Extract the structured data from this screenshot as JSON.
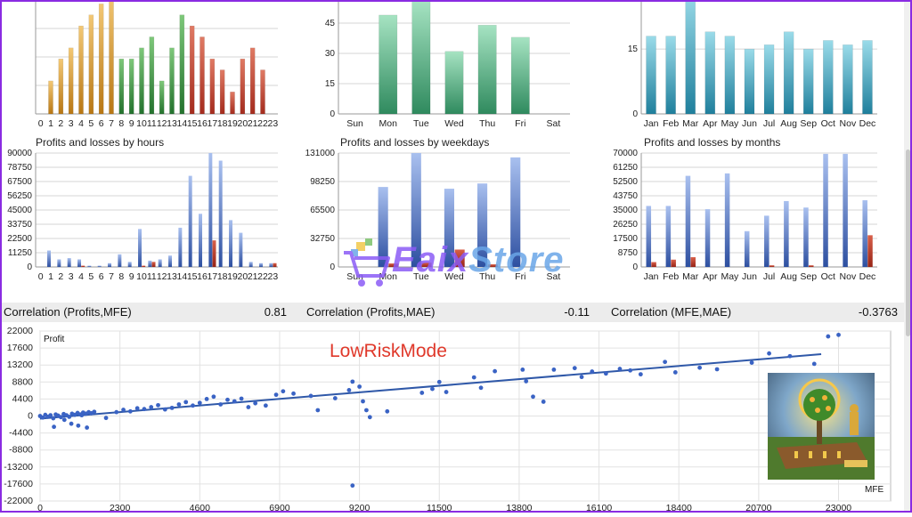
{
  "colors": {
    "brown": "#c8861d",
    "green": "#2f8c3a",
    "red": "#b3392a",
    "teal": "#3fa67a",
    "cyan": "#2b98b6",
    "blue": "#3f61b3",
    "loss": "#b3392a",
    "grid": "#d6d6d6",
    "trend": "#2f58a8",
    "dot": "#3a63c4"
  },
  "correlations": [
    {
      "label": "Correlation (Profits,MFE)",
      "value": "0.81"
    },
    {
      "label": "Correlation (Profits,MAE)",
      "value": "-0.11"
    },
    {
      "label": "Correlation (MFE,MAE)",
      "value": "-0.3763"
    }
  ],
  "overlay": {
    "watermark_main": "Eaix",
    "watermark_store": "Store",
    "mode_label": "LowRiskMode"
  },
  "chart_data": [
    {
      "id": "top-hours",
      "type": "bar",
      "title": "",
      "categories": [
        "0",
        "1",
        "2",
        "3",
        "4",
        "5",
        "6",
        "7",
        "8",
        "9",
        "10",
        "11",
        "12",
        "13",
        "14",
        "15",
        "16",
        "17",
        "18",
        "19",
        "20",
        "21",
        "22",
        "23"
      ],
      "values": [
        0,
        3,
        5,
        6,
        8,
        9,
        10,
        11,
        5,
        5,
        6,
        7,
        3,
        6,
        9,
        8,
        7,
        5,
        4,
        2,
        5,
        6,
        4,
        0
      ],
      "bar_colors": [
        "brown",
        "brown",
        "brown",
        "brown",
        "brown",
        "brown",
        "brown",
        "brown",
        "green",
        "green",
        "green",
        "green",
        "green",
        "green",
        "green",
        "red",
        "red",
        "red",
        "red",
        "red",
        "red",
        "red",
        "red",
        "red"
      ],
      "ylim": [
        0,
        11
      ],
      "yticks": [],
      "yticks_note": "top of chart cropped; tick labels not visible"
    },
    {
      "id": "top-weekdays",
      "type": "bar",
      "categories": [
        "Sun",
        "Mon",
        "Tue",
        "Wed",
        "Thu",
        "Fri",
        "Sat"
      ],
      "values": [
        0,
        49,
        56,
        31,
        44,
        38,
        0
      ],
      "ylim": [
        0,
        60
      ],
      "yticks": [
        "0",
        "15",
        "30",
        "45"
      ]
    },
    {
      "id": "top-months",
      "type": "bar",
      "categories": [
        "Jan",
        "Feb",
        "Mar",
        "Apr",
        "May",
        "Jun",
        "Jul",
        "Aug",
        "Sep",
        "Oct",
        "Nov",
        "Dec"
      ],
      "values": [
        18,
        18,
        28,
        19,
        18,
        15,
        16,
        19,
        15,
        17,
        16,
        17
      ],
      "ylim": [
        0,
        28
      ],
      "yticks": [
        "0",
        "15"
      ]
    },
    {
      "id": "pl-hours",
      "type": "bar",
      "title": "Profits and losses by hours",
      "categories": [
        "0",
        "1",
        "2",
        "3",
        "4",
        "5",
        "6",
        "7",
        "8",
        "9",
        "10",
        "11",
        "12",
        "13",
        "14",
        "15",
        "16",
        "17",
        "18",
        "19",
        "20",
        "21",
        "22",
        "23"
      ],
      "series": [
        {
          "values": [
            0,
            13000,
            6000,
            7000,
            6000,
            1000,
            1000,
            3000,
            10000,
            4000,
            30000,
            5000,
            6000,
            9000,
            31000,
            72000,
            42000,
            90000,
            84000,
            37000,
            27000,
            4000,
            3000,
            3000
          ]
        },
        {
          "values": [
            0,
            0,
            0,
            0,
            1000,
            0,
            0,
            0,
            0,
            0,
            1000,
            4000,
            0,
            0,
            0,
            0,
            0,
            21000,
            0,
            0,
            0,
            0,
            0,
            3000
          ]
        }
      ],
      "ylim": [
        0,
        90000
      ],
      "yticks": [
        "0",
        "11250",
        "22500",
        "33750",
        "45000",
        "56250",
        "67500",
        "78750",
        "90000"
      ]
    },
    {
      "id": "pl-weekdays",
      "type": "bar",
      "title": "Profits and losses by weekdays",
      "categories": [
        "Sun",
        "Mon",
        "Tue",
        "Wed",
        "Thu",
        "Fri",
        "Sat"
      ],
      "series": [
        {
          "values": [
            0,
            92000,
            131000,
            90000,
            96000,
            126000,
            0
          ]
        },
        {
          "values": [
            0,
            4000,
            5000,
            20000,
            3000,
            0,
            0
          ]
        }
      ],
      "ylim": [
        0,
        131000
      ],
      "yticks": [
        "0",
        "32750",
        "65500",
        "98250",
        "131000"
      ]
    },
    {
      "id": "pl-months",
      "type": "bar",
      "title": "Profits and losses by months",
      "categories": [
        "Jan",
        "Feb",
        "Mar",
        "Apr",
        "May",
        "Jun",
        "Jul",
        "Aug",
        "Sep",
        "Oct",
        "Nov",
        "Dec"
      ],
      "series": [
        {
          "values": [
            37500,
            37500,
            56000,
            35500,
            57500,
            22000,
            31500,
            40500,
            36500,
            69500,
            69500,
            41000
          ]
        },
        {
          "values": [
            3000,
            4500,
            6000,
            0,
            0,
            0,
            1000,
            0,
            1000,
            0,
            0,
            19500
          ]
        }
      ],
      "ylim": [
        0,
        70000
      ],
      "yticks": [
        "0",
        "8750",
        "17500",
        "26250",
        "35000",
        "43750",
        "52500",
        "61250",
        "70000"
      ]
    },
    {
      "id": "scatter-mfe",
      "type": "scatter",
      "xlabel": "MFE",
      "ylabel": "Profit",
      "xlim": [
        0,
        24500
      ],
      "ylim": [
        -22000,
        22000
      ],
      "xticks": [
        "0",
        "2300",
        "4600",
        "6900",
        "9200",
        "11500",
        "13800",
        "16100",
        "18400",
        "20700",
        "23000"
      ],
      "yticks": [
        "-22000",
        "-17600",
        "-13200",
        "-8800",
        "-4400",
        "0",
        "4400",
        "8800",
        "13200",
        "17600",
        "22000"
      ],
      "trend": {
        "x": [
          0,
          22500
        ],
        "y": [
          -700,
          16000
        ]
      },
      "points": [
        [
          0,
          0
        ],
        [
          80,
          -400
        ],
        [
          150,
          300
        ],
        [
          220,
          -200
        ],
        [
          300,
          200
        ],
        [
          380,
          -600
        ],
        [
          450,
          400
        ],
        [
          520,
          100
        ],
        [
          600,
          -300
        ],
        [
          680,
          500
        ],
        [
          760,
          200
        ],
        [
          840,
          -200
        ],
        [
          920,
          600
        ],
        [
          1000,
          300
        ],
        [
          1080,
          800
        ],
        [
          1160,
          400
        ],
        [
          1240,
          900
        ],
        [
          1320,
          600
        ],
        [
          1400,
          1000
        ],
        [
          1480,
          700
        ],
        [
          1560,
          1100
        ],
        [
          1200,
          200
        ],
        [
          700,
          -1000
        ],
        [
          900,
          -2000
        ],
        [
          1100,
          -2500
        ],
        [
          1350,
          -3000
        ],
        [
          400,
          -2800
        ],
        [
          1900,
          -500
        ],
        [
          2200,
          1000
        ],
        [
          2400,
          1600
        ],
        [
          2600,
          1200
        ],
        [
          2800,
          2000
        ],
        [
          3000,
          1800
        ],
        [
          3200,
          2300
        ],
        [
          3400,
          2800
        ],
        [
          3600,
          1700
        ],
        [
          3800,
          2100
        ],
        [
          4000,
          3000
        ],
        [
          4200,
          3600
        ],
        [
          4400,
          2700
        ],
        [
          4600,
          3400
        ],
        [
          4800,
          4400
        ],
        [
          5000,
          5000
        ],
        [
          5200,
          3000
        ],
        [
          5400,
          4200
        ],
        [
          5600,
          3800
        ],
        [
          5800,
          4500
        ],
        [
          6000,
          2300
        ],
        [
          6200,
          3300
        ],
        [
          6500,
          2700
        ],
        [
          6800,
          5500
        ],
        [
          7000,
          6400
        ],
        [
          7300,
          5800
        ],
        [
          7800,
          5200
        ],
        [
          8000,
          1500
        ],
        [
          8500,
          4600
        ],
        [
          8900,
          6700
        ],
        [
          9000,
          8900
        ],
        [
          9200,
          7600
        ],
        [
          9300,
          3800
        ],
        [
          9400,
          1500
        ],
        [
          9500,
          -300
        ],
        [
          10000,
          1200
        ],
        [
          11000,
          6000
        ],
        [
          11300,
          7000
        ],
        [
          11500,
          8800
        ],
        [
          11700,
          6200
        ],
        [
          12500,
          10000
        ],
        [
          12700,
          7300
        ],
        [
          13100,
          11600
        ],
        [
          13900,
          12000
        ],
        [
          14000,
          9000
        ],
        [
          14200,
          5000
        ],
        [
          14500,
          3700
        ],
        [
          14800,
          12000
        ],
        [
          15400,
          12400
        ],
        [
          15600,
          10100
        ],
        [
          15900,
          11500
        ],
        [
          16300,
          11000
        ],
        [
          16700,
          12200
        ],
        [
          17000,
          11800
        ],
        [
          17300,
          10800
        ],
        [
          18000,
          14000
        ],
        [
          18300,
          11300
        ],
        [
          19000,
          12500
        ],
        [
          19500,
          12100
        ],
        [
          20500,
          13800
        ],
        [
          21000,
          16200
        ],
        [
          21600,
          15500
        ],
        [
          22300,
          13500
        ],
        [
          22700,
          20600
        ],
        [
          23000,
          21000
        ],
        [
          9000,
          -18000
        ]
      ]
    }
  ]
}
